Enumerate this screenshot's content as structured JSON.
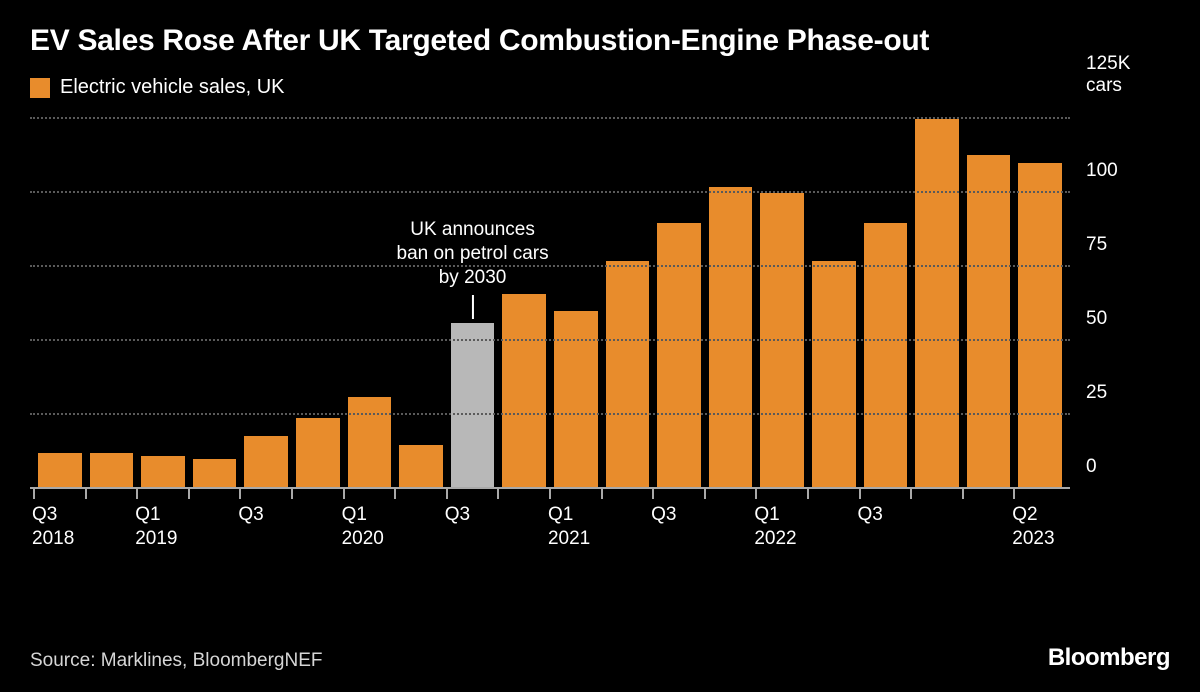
{
  "title": "EV Sales Rose After UK Targeted Combustion-Engine Phase-out",
  "legend": {
    "label": "Electric vehicle sales, UK",
    "swatch_color": "#e88c2c"
  },
  "chart": {
    "type": "bar",
    "background_color": "#000000",
    "bar_color": "#e88c2c",
    "highlight_bar_color": "#b8b8b8",
    "grid_color": "#5a5a5a",
    "baseline_color": "#a9a9a9",
    "text_color": "#ffffff",
    "y_axis": {
      "max": 125,
      "top_label": "125K cars",
      "ticks": [
        0,
        25,
        50,
        75,
        100
      ],
      "position": "right"
    },
    "x_labels": [
      "Q3\n2018",
      "",
      "Q1\n2019",
      "",
      "Q3",
      "",
      "Q1\n2020",
      "",
      "Q3",
      "",
      "Q1\n2021",
      "",
      "Q3",
      "",
      "Q1\n2022",
      "",
      "Q3",
      "",
      "",
      "Q2\n2023"
    ],
    "values": [
      12,
      12,
      11,
      10,
      18,
      24,
      31,
      15,
      56,
      66,
      60,
      77,
      90,
      102,
      100,
      77,
      90,
      125,
      113,
      110
    ],
    "highlight_index": 8,
    "annotation": {
      "text": "UK announces\nban on petrol cars\nby 2030",
      "bar_index": 8,
      "line_height": 24
    }
  },
  "source": "Source: Marklines, BloombergNEF",
  "brand": "Bloomberg"
}
